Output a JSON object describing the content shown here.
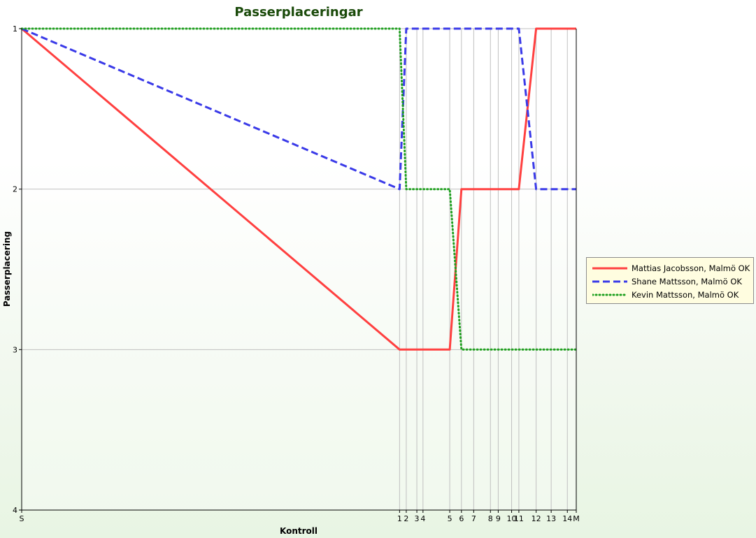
{
  "chart_data": {
    "type": "line",
    "title": "Passerplaceringar",
    "xlabel": "Kontroll",
    "ylabel": "Passerplacering",
    "x_ticks": [
      {
        "label": "S",
        "x": 0
      },
      {
        "label": "1",
        "x": 678
      },
      {
        "label": "2",
        "x": 690
      },
      {
        "label": "3",
        "x": 709
      },
      {
        "label": "4",
        "x": 720
      },
      {
        "label": "5",
        "x": 768
      },
      {
        "label": "6",
        "x": 789
      },
      {
        "label": "7",
        "x": 811
      },
      {
        "label": "8",
        "x": 841
      },
      {
        "label": "9",
        "x": 855
      },
      {
        "label": "10",
        "x": 879
      },
      {
        "label": "11",
        "x": 892
      },
      {
        "label": "12",
        "x": 923
      },
      {
        "label": "13",
        "x": 950
      },
      {
        "label": "14",
        "x": 979
      },
      {
        "label": "M",
        "x": 995
      }
    ],
    "xlim": [
      0,
      995
    ],
    "ylim": [
      1,
      4
    ],
    "y_ticks": [
      1,
      2,
      3,
      4
    ],
    "y_inverted": true,
    "legend_position": "right",
    "series": [
      {
        "name": "Mattias Jacobsson, Malmö OK",
        "color": "#ff4040",
        "dash": "solid",
        "values": [
          1,
          3,
          3,
          3,
          3,
          3,
          2,
          2,
          2,
          2,
          2,
          2,
          1,
          1,
          1,
          1
        ]
      },
      {
        "name": "Shane Mattsson, Malmö OK",
        "color": "#3a3ae8",
        "dash": "dashed",
        "values": [
          1,
          2,
          1,
          1,
          1,
          1,
          1,
          1,
          1,
          1,
          1,
          1,
          2,
          2,
          2,
          2
        ]
      },
      {
        "name": "Kevin Mattsson, Malmö OK",
        "color": "#1fa01f",
        "dash": "dotted",
        "values": [
          1,
          1,
          2,
          2,
          2,
          2,
          3,
          3,
          3,
          3,
          3,
          3,
          3,
          3,
          3,
          3
        ]
      }
    ]
  }
}
